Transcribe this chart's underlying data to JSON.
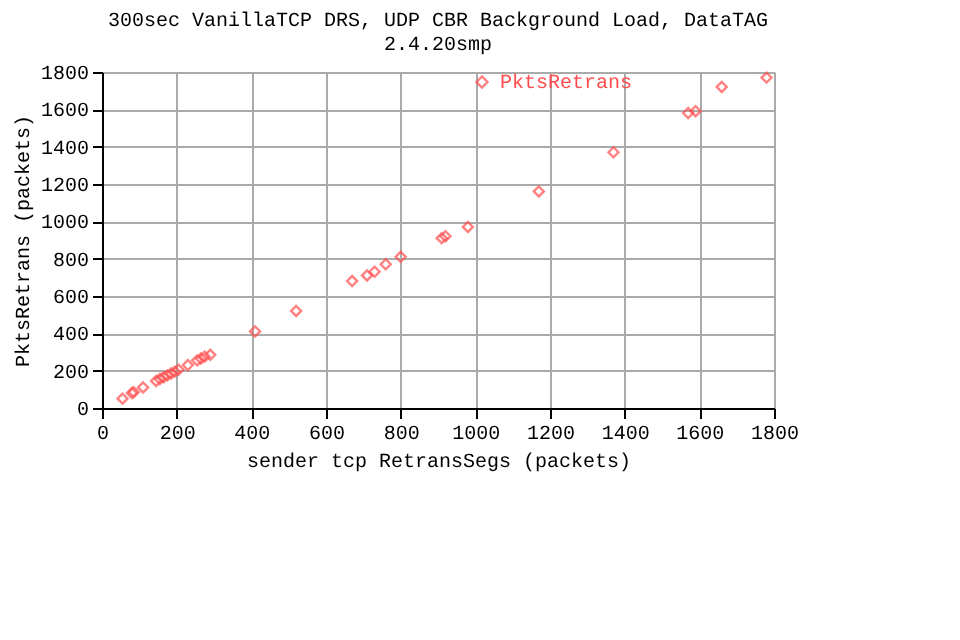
{
  "chart_data": {
    "type": "scatter",
    "title": [
      "300sec VanillaTCP DRS, UDP CBR Background Load, DataTAG",
      "2.4.20smp"
    ],
    "xlabel": "sender tcp RetransSegs (packets)",
    "ylabel": "PktsRetrans (packets)",
    "x": [
      55,
      80,
      85,
      110,
      145,
      155,
      165,
      175,
      185,
      195,
      205,
      230,
      255,
      265,
      275,
      290,
      410,
      520,
      670,
      710,
      730,
      760,
      800,
      910,
      920,
      980,
      1170,
      1370,
      1570,
      1590,
      1660,
      1780
    ],
    "series": [
      {
        "name": "PktsRetrans",
        "color": "#ff4c4c",
        "values": [
          50,
          80,
          85,
          110,
          145,
          155,
          165,
          175,
          185,
          195,
          205,
          230,
          255,
          265,
          275,
          285,
          410,
          520,
          680,
          710,
          730,
          770,
          810,
          910,
          920,
          970,
          1160,
          1370,
          1580,
          1590,
          1720,
          1770
        ]
      }
    ],
    "xlim": [
      0,
      1800
    ],
    "ylim": [
      0,
      1800
    ],
    "xticks": [
      0,
      200,
      400,
      600,
      800,
      1000,
      1200,
      1400,
      1600,
      1800
    ],
    "yticks": [
      0,
      200,
      400,
      600,
      800,
      1000,
      1200,
      1400,
      1600,
      1800
    ],
    "grid": true,
    "legend": "top right",
    "marker": "diamond"
  }
}
